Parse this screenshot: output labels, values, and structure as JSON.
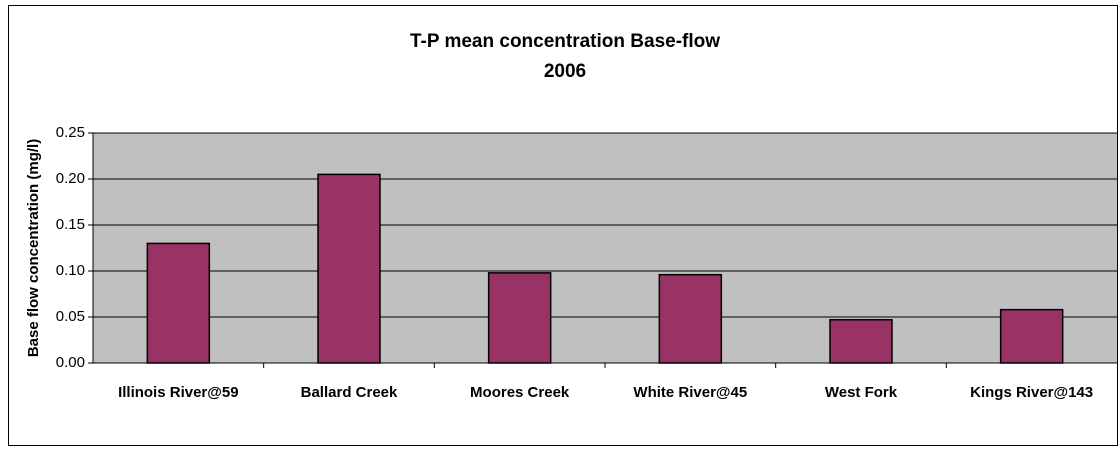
{
  "chart_data": {
    "type": "bar",
    "title": [
      "T-P mean concentration Base-flow",
      "2006"
    ],
    "y_label": "Base flow concentration (mg/l)",
    "categories": [
      "Illinois River@59",
      "Ballard Creek",
      "Moores Creek",
      "White River@45",
      "West Fork",
      "Kings River@143"
    ],
    "values": [
      0.13,
      0.205,
      0.098,
      0.096,
      0.047,
      0.058
    ],
    "color": "#993366",
    "ylim": [
      0,
      0.25
    ],
    "yticks": [
      {
        "value": 0,
        "label": "0.00"
      },
      {
        "value": 0.05,
        "label": "0.05"
      },
      {
        "value": 0.1,
        "label": "0.10"
      },
      {
        "value": 0.15,
        "label": "0.15"
      },
      {
        "value": 0.2,
        "label": "0.20"
      },
      {
        "value": 0.25,
        "label": "0.25"
      }
    ],
    "grid": true
  }
}
